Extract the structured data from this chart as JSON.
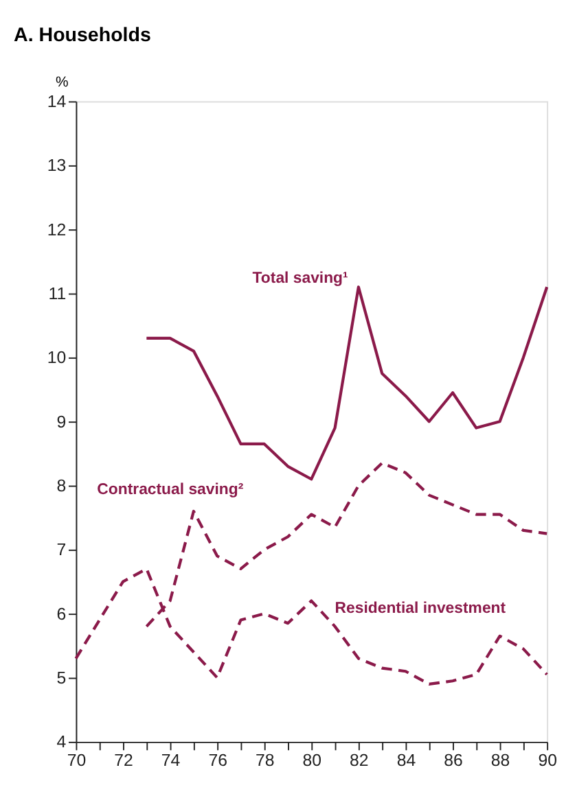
{
  "chart_data": {
    "type": "line",
    "title": "A. Households",
    "ylabel": "%",
    "x": [
      70,
      71,
      72,
      73,
      74,
      75,
      76,
      77,
      78,
      79,
      80,
      81,
      82,
      83,
      84,
      85,
      86,
      87,
      88,
      89,
      90
    ],
    "series": [
      {
        "name": "Total saving¹",
        "color": "#8b1a4a",
        "line_style": "solid",
        "x": [
          73,
          74,
          75,
          76,
          77,
          78,
          79,
          80,
          81,
          82,
          83,
          84,
          85,
          86,
          87,
          88,
          89,
          90
        ],
        "values": [
          10.3,
          10.3,
          10.1,
          9.4,
          8.65,
          8.65,
          8.3,
          8.1,
          8.9,
          11.1,
          9.75,
          9.4,
          9.0,
          9.45,
          8.9,
          9.0,
          10.0,
          11.1
        ]
      },
      {
        "name": "Contractual saving²",
        "color": "#8b1a4a",
        "line_style": "dashed",
        "x": [
          73,
          74,
          75,
          76,
          77,
          78,
          79,
          80,
          81,
          82,
          83,
          84,
          85,
          86,
          87,
          88,
          89,
          90
        ],
        "values": [
          5.8,
          6.2,
          7.6,
          6.9,
          6.7,
          7.0,
          7.2,
          7.55,
          7.35,
          8.0,
          8.35,
          8.2,
          7.85,
          7.7,
          7.55,
          7.55,
          7.3,
          7.25
        ]
      },
      {
        "name": "Residential investment",
        "color": "#8b1a4a",
        "line_style": "dashed",
        "values": [
          5.3,
          5.9,
          6.5,
          6.7,
          5.8,
          5.4,
          5.0,
          5.9,
          6.0,
          5.85,
          6.2,
          5.8,
          5.3,
          5.15,
          5.1,
          4.9,
          4.95,
          5.05,
          5.65,
          5.45,
          5.05
        ]
      }
    ],
    "xlim": [
      70,
      90
    ],
    "ylim": [
      4,
      14
    ],
    "xticks": [
      70,
      {
        "value": 71,
        "label": null
      },
      72,
      {
        "value": 73,
        "label": null
      },
      74,
      {
        "value": 75,
        "label": null
      },
      76,
      {
        "value": 77,
        "label": null
      },
      78,
      {
        "value": 79,
        "label": null
      },
      80,
      {
        "value": 81,
        "label": null
      },
      82,
      {
        "value": 83,
        "label": null
      },
      84,
      {
        "value": 85,
        "label": null
      },
      86,
      {
        "value": 87,
        "label": null
      },
      88,
      {
        "value": 89,
        "label": null
      },
      90
    ],
    "yticks": [
      4,
      5,
      6,
      7,
      8,
      9,
      10,
      11,
      12,
      13,
      14
    ],
    "grid": false,
    "legend": false,
    "marker": "none"
  }
}
